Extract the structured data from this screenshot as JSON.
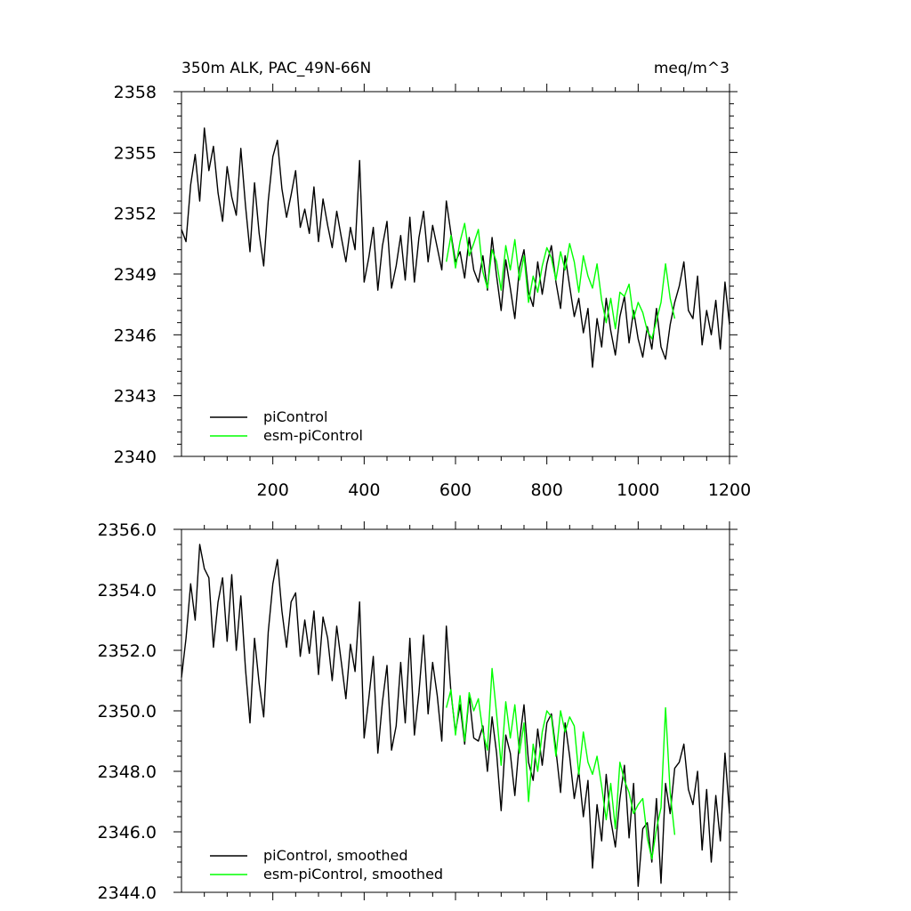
{
  "chart_data": [
    {
      "type": "line",
      "title": "350m ALK, PAC_49N-66N",
      "title_right": "meq/m^3",
      "xlim": [
        0,
        1200
      ],
      "ylim": [
        2340,
        2358
      ],
      "xticks": [
        200,
        400,
        600,
        800,
        1000,
        1200
      ],
      "xtick_labels": [
        "200",
        "400",
        "600",
        "800",
        "1000",
        "1200"
      ],
      "yticks": [
        2340,
        2343,
        2346,
        2349,
        2352,
        2355,
        2358
      ],
      "ytick_labels": [
        "2340",
        "2343",
        "2346",
        "2349",
        "2352",
        "2355",
        "2358"
      ],
      "legend_position": "bottom-left",
      "series": [
        {
          "name": "piControl",
          "color": "#000000",
          "x": [
            0,
            10,
            20,
            30,
            40,
            50,
            60,
            70,
            80,
            90,
            100,
            110,
            120,
            130,
            140,
            150,
            160,
            170,
            180,
            190,
            200,
            210,
            220,
            230,
            240,
            250,
            260,
            270,
            280,
            290,
            300,
            310,
            320,
            330,
            340,
            350,
            360,
            370,
            380,
            390,
            400,
            410,
            420,
            430,
            440,
            450,
            460,
            470,
            480,
            490,
            500,
            510,
            520,
            530,
            540,
            550,
            560,
            570,
            580,
            590,
            600,
            610,
            620,
            630,
            640,
            650,
            660,
            670,
            680,
            690,
            700,
            710,
            720,
            730,
            740,
            750,
            760,
            770,
            780,
            790,
            800,
            810,
            820,
            830,
            840,
            850,
            860,
            870,
            880,
            890,
            900,
            910,
            920,
            930,
            940,
            950,
            960,
            970,
            980,
            990,
            1000,
            1010,
            1020,
            1030,
            1040,
            1050,
            1060,
            1070,
            1080,
            1090,
            1100,
            1110,
            1120,
            1130,
            1140,
            1150,
            1160,
            1170,
            1180,
            1190,
            1200
          ],
          "values": [
            2351.2,
            2350.6,
            2353.4,
            2354.9,
            2352.6,
            2356.2,
            2354.1,
            2355.3,
            2353.0,
            2351.6,
            2354.3,
            2352.8,
            2351.9,
            2355.2,
            2352.4,
            2350.1,
            2353.5,
            2351.0,
            2349.4,
            2352.6,
            2354.8,
            2355.6,
            2353.2,
            2351.8,
            2352.9,
            2354.1,
            2351.3,
            2352.2,
            2351.0,
            2353.3,
            2350.6,
            2352.7,
            2351.4,
            2350.3,
            2352.1,
            2350.8,
            2349.6,
            2351.3,
            2350.2,
            2354.6,
            2348.6,
            2349.8,
            2351.3,
            2348.2,
            2350.4,
            2351.6,
            2348.3,
            2349.4,
            2350.9,
            2348.7,
            2351.8,
            2348.6,
            2350.8,
            2352.1,
            2349.6,
            2351.4,
            2350.3,
            2349.2,
            2352.6,
            2351.0,
            2349.6,
            2350.1,
            2348.8,
            2350.8,
            2349.2,
            2348.6,
            2349.9,
            2348.2,
            2350.8,
            2348.9,
            2347.2,
            2349.7,
            2348.3,
            2346.8,
            2349.3,
            2350.2,
            2348.1,
            2347.4,
            2349.6,
            2348.0,
            2349.5,
            2350.4,
            2348.6,
            2347.3,
            2349.9,
            2348.4,
            2346.9,
            2347.8,
            2346.1,
            2347.3,
            2344.4,
            2346.8,
            2345.4,
            2347.8,
            2346.2,
            2345.0,
            2346.9,
            2347.9,
            2345.6,
            2347.2,
            2345.8,
            2344.9,
            2346.4,
            2345.3,
            2347.3,
            2345.4,
            2344.8,
            2346.5,
            2347.6,
            2348.4,
            2349.6,
            2347.2,
            2346.8,
            2348.9,
            2345.5,
            2347.2,
            2346.0,
            2347.7,
            2345.3,
            2348.6,
            2346.5
          ]
        },
        {
          "name": "esm-piControl",
          "color": "#00ff00",
          "x": [
            580,
            590,
            600,
            610,
            620,
            630,
            640,
            650,
            660,
            670,
            680,
            690,
            700,
            710,
            720,
            730,
            740,
            750,
            760,
            770,
            780,
            790,
            800,
            810,
            820,
            830,
            840,
            850,
            860,
            870,
            880,
            890,
            900,
            910,
            920,
            930,
            940,
            950,
            960,
            970,
            980,
            990,
            1000,
            1010,
            1020,
            1030,
            1040,
            1050,
            1060,
            1070,
            1080
          ],
          "values": [
            2349.6,
            2350.9,
            2349.3,
            2350.6,
            2351.5,
            2349.9,
            2350.5,
            2351.2,
            2349.1,
            2348.3,
            2350.2,
            2349.6,
            2348.2,
            2350.4,
            2349.2,
            2350.7,
            2348.7,
            2349.9,
            2347.6,
            2348.9,
            2348.1,
            2349.4,
            2350.3,
            2349.8,
            2348.7,
            2350.1,
            2349.2,
            2350.5,
            2349.6,
            2348.1,
            2349.9,
            2348.9,
            2348.3,
            2349.5,
            2347.7,
            2346.6,
            2347.8,
            2346.3,
            2348.1,
            2347.9,
            2348.5,
            2346.8,
            2347.6,
            2347.1,
            2346.2,
            2345.8,
            2346.7,
            2347.6,
            2349.5,
            2347.8,
            2346.8
          ]
        }
      ]
    },
    {
      "type": "line",
      "xlim": [
        0,
        1200
      ],
      "ylim": [
        2344,
        2356
      ],
      "xticks": [
        200,
        400,
        600,
        800,
        1000,
        1200
      ],
      "yticks": [
        2344,
        2346,
        2348,
        2350,
        2352,
        2354,
        2356
      ],
      "ytick_labels": [
        "2344.0",
        "2346.0",
        "2348.0",
        "2350.0",
        "2352.0",
        "2354.0",
        "2356.0"
      ],
      "legend_position": "bottom-left",
      "series": [
        {
          "name": "piControl, smoothed",
          "color": "#000000",
          "x": [
            0,
            10,
            20,
            30,
            40,
            50,
            60,
            70,
            80,
            90,
            100,
            110,
            120,
            130,
            140,
            150,
            160,
            170,
            180,
            190,
            200,
            210,
            220,
            230,
            240,
            250,
            260,
            270,
            280,
            290,
            300,
            310,
            320,
            330,
            340,
            350,
            360,
            370,
            380,
            390,
            400,
            410,
            420,
            430,
            440,
            450,
            460,
            470,
            480,
            490,
            500,
            510,
            520,
            530,
            540,
            550,
            560,
            570,
            580,
            590,
            600,
            610,
            620,
            630,
            640,
            650,
            660,
            670,
            680,
            690,
            700,
            710,
            720,
            730,
            740,
            750,
            760,
            770,
            780,
            790,
            800,
            810,
            820,
            830,
            840,
            850,
            860,
            870,
            880,
            890,
            900,
            910,
            920,
            930,
            940,
            950,
            960,
            970,
            980,
            990,
            1000,
            1010,
            1020,
            1030,
            1040,
            1050,
            1060,
            1070,
            1080,
            1090,
            1100,
            1110,
            1120,
            1130,
            1140,
            1150,
            1160,
            1170,
            1180,
            1190,
            1200
          ],
          "values": [
            2351.1,
            2352.4,
            2354.2,
            2353.0,
            2355.5,
            2354.7,
            2354.4,
            2352.1,
            2353.6,
            2354.4,
            2352.3,
            2354.5,
            2352.0,
            2353.8,
            2351.4,
            2349.6,
            2352.4,
            2350.9,
            2349.8,
            2352.6,
            2354.2,
            2355.0,
            2353.3,
            2352.1,
            2353.6,
            2353.9,
            2351.8,
            2353.0,
            2351.9,
            2353.3,
            2351.2,
            2353.1,
            2352.4,
            2351.0,
            2352.8,
            2351.6,
            2350.4,
            2352.2,
            2351.3,
            2353.6,
            2349.1,
            2350.4,
            2351.8,
            2348.6,
            2350.3,
            2351.5,
            2348.7,
            2349.5,
            2351.6,
            2349.6,
            2352.4,
            2349.2,
            2350.6,
            2352.5,
            2349.9,
            2351.6,
            2350.5,
            2349.0,
            2352.8,
            2350.6,
            2349.3,
            2350.2,
            2348.9,
            2350.5,
            2349.1,
            2349.0,
            2349.5,
            2348.0,
            2349.8,
            2348.6,
            2346.7,
            2349.2,
            2348.6,
            2347.2,
            2349.0,
            2350.2,
            2348.3,
            2347.7,
            2349.4,
            2348.2,
            2349.6,
            2349.9,
            2348.7,
            2347.3,
            2349.6,
            2348.5,
            2347.1,
            2348.0,
            2346.5,
            2347.7,
            2344.8,
            2346.9,
            2345.7,
            2347.9,
            2346.4,
            2345.5,
            2347.1,
            2348.2,
            2345.8,
            2347.6,
            2344.2,
            2346.1,
            2346.3,
            2345.0,
            2347.1,
            2344.3,
            2347.6,
            2346.6,
            2348.1,
            2348.3,
            2348.9,
            2347.4,
            2346.9,
            2348.0,
            2345.4,
            2347.4,
            2345.0,
            2347.2,
            2345.7,
            2348.6,
            2346.6
          ]
        },
        {
          "name": "esm-piControl, smoothed",
          "color": "#00ff00",
          "x": [
            580,
            590,
            600,
            610,
            620,
            630,
            640,
            650,
            660,
            670,
            680,
            690,
            700,
            710,
            720,
            730,
            740,
            750,
            760,
            770,
            780,
            790,
            800,
            810,
            820,
            830,
            840,
            850,
            860,
            870,
            880,
            890,
            900,
            910,
            920,
            930,
            940,
            950,
            960,
            970,
            980,
            990,
            1000,
            1010,
            1020,
            1030,
            1040,
            1050,
            1060,
            1070,
            1080
          ],
          "values": [
            2350.1,
            2350.7,
            2349.2,
            2350.5,
            2349.0,
            2350.6,
            2350.0,
            2350.4,
            2349.3,
            2348.7,
            2351.4,
            2349.9,
            2348.2,
            2350.3,
            2349.1,
            2350.2,
            2348.6,
            2349.6,
            2347.0,
            2348.9,
            2348.0,
            2349.3,
            2350.0,
            2349.8,
            2348.5,
            2350.0,
            2349.3,
            2349.8,
            2349.5,
            2347.9,
            2349.3,
            2348.3,
            2347.9,
            2348.5,
            2347.5,
            2346.4,
            2347.6,
            2346.1,
            2348.3,
            2347.7,
            2347.3,
            2346.6,
            2346.9,
            2347.1,
            2345.8,
            2345.1,
            2346.1,
            2346.8,
            2350.1,
            2347.3,
            2345.9
          ]
        }
      ]
    }
  ]
}
